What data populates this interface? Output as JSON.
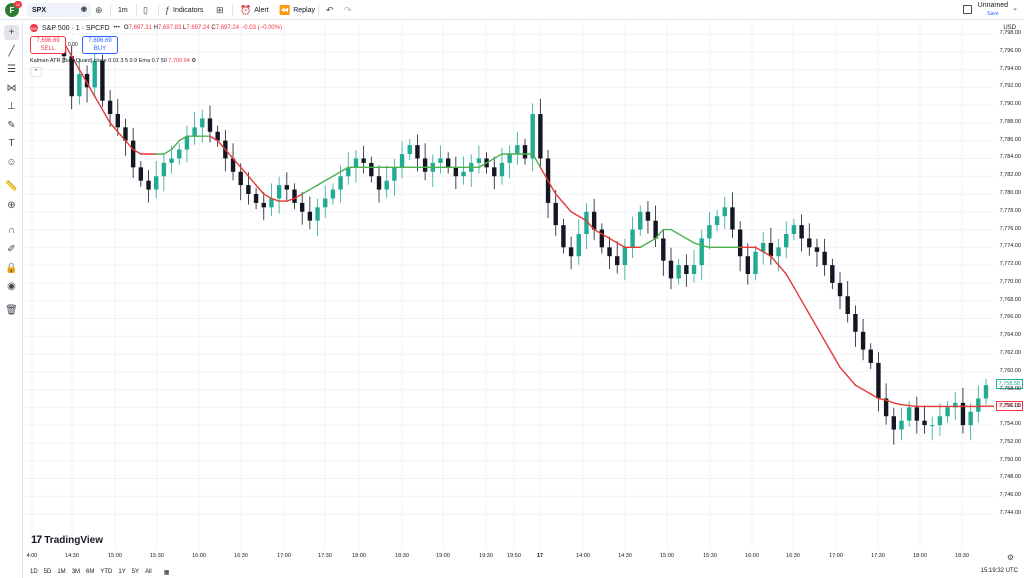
{
  "topbar": {
    "logo_letter": "F",
    "badge": "11",
    "symbol": "SPX",
    "interval": "1m",
    "indicators": "Indicators",
    "alert": "Alert",
    "replay": "Replay",
    "layout_name": "Unnamed",
    "save_label": "Save"
  },
  "legend": {
    "symbol_title": "S&P 500 · 1 · SPCFD",
    "ohlc": {
      "o": "7,697.31",
      "h": "7,697.83",
      "l": "7,697.24",
      "c": "7,697.24",
      "change": "−0.03 (−0.00%)"
    },
    "sell_price": "7,696.69",
    "sell_label": "SELL",
    "spread": "0.00",
    "buy_price": "7,696.69",
    "buy_label": "BUY",
    "indicator": "Kalman ATR [BackQuant] close 0.01 3 5 0.9 Ema 0.7 50",
    "indicator_value": "7,700.94"
  },
  "price_axis": {
    "currency": "USD",
    "labels": [
      "7,798.00",
      "7,796.00",
      "7,794.00",
      "7,792.00",
      "7,790.00",
      "7,788.00",
      "7,786.00",
      "7,784.00",
      "7,782.00",
      "7,780.00",
      "7,778.00",
      "7,776.00",
      "7,774.00",
      "7,772.00",
      "7,770.00",
      "7,768.00",
      "7,766.00",
      "7,764.00",
      "7,762.00",
      "7,760.00",
      "7,758.00",
      "7,756.00",
      "7,754.00",
      "7,752.00",
      "7,750.00",
      "7,748.00",
      "7,746.00",
      "7,744.00"
    ],
    "last_price_tag": "7,758.58",
    "indicator_tag": "7,756.13"
  },
  "time_axis": {
    "labels": [
      "4:00",
      "14:30",
      "15:00",
      "15:30",
      "16:00",
      "16:30",
      "17:00",
      "17:30",
      "18:00",
      "18:30",
      "19:00",
      "19:30",
      "19:50",
      "17",
      "14:00",
      "14:30",
      "15:00",
      "15:30",
      "16:00",
      "16:30",
      "17:00",
      "17:30",
      "18:00",
      "18:30"
    ]
  },
  "bottombar": {
    "ranges": [
      "1D",
      "5D",
      "1M",
      "3M",
      "6M",
      "YTD",
      "1Y",
      "5Y",
      "All"
    ],
    "clock": "15:19:32 UTC"
  },
  "watermark": "TradingView",
  "chart_data": {
    "type": "candlestick",
    "symbol": "S&P 500 · 1 · SPCFD",
    "ylim": [
      7743,
      7799
    ],
    "indicator_name": "Kalman ATR [BackQuant]",
    "colors": {
      "up": "#22ab94",
      "down": "#131722",
      "line_bear": "#e53935",
      "line_bull": "#4caf50"
    },
    "close_series": [
      7795.5,
      7791,
      7793.5,
      7792,
      7795,
      7790.5,
      7789,
      7787.5,
      7786,
      7783,
      7781.5,
      7780.5,
      7782,
      7783.5,
      7784,
      7785,
      7786.5,
      7787.5,
      7788.5,
      7787,
      7786,
      7784,
      7782.5,
      7781,
      7780,
      7779,
      7778.5,
      7779.5,
      7781,
      7780.5,
      7779,
      7778,
      7777,
      7778.5,
      7779.5,
      7780.5,
      7782,
      7783,
      7784,
      7783.5,
      7782,
      7780.5,
      7781.5,
      7783,
      7784.5,
      7785.5,
      7784,
      7782.5,
      7783.5,
      7784,
      7783,
      7782,
      7782.5,
      7783.5,
      7784,
      7783,
      7782,
      7783.5,
      7784.5,
      7785.5,
      7784,
      7789,
      7784,
      7779,
      7776.5,
      7774,
      7773,
      7775.5,
      7778,
      7776,
      7774,
      7773,
      7772,
      7774,
      7776,
      7778,
      7777,
      7775,
      7772.5,
      7770.5,
      7772,
      7771,
      7772,
      7775,
      7776.5,
      7777.5,
      7778.5,
      7776,
      7773,
      7771,
      7773.5,
      7774.5,
      7773,
      7774,
      7775.5,
      7776.5,
      7775,
      7774,
      7773.5,
      7772,
      7770,
      7768.5,
      7766.5,
      7764.5,
      7762.5,
      7761,
      7757,
      7755,
      7753.5,
      7754.5,
      7756,
      7754.5,
      7754,
      7754,
      7755,
      7756,
      7756.5,
      7754,
      7755.5,
      7757,
      7758.5
    ],
    "indicator_series": [
      7797,
      7795.5,
      7794,
      7792.5,
      7791,
      7789.5,
      7788,
      7787,
      7786,
      7785,
      7784.5,
      7784.5,
      7784.5,
      7784.5,
      7785,
      7786,
      7786.5,
      7786.5,
      7786.5,
      7786.5,
      7786,
      7785,
      7784,
      7783,
      7782,
      7781,
      7780,
      7779.5,
      7779.2,
      7779.2,
      7779.5,
      7780,
      7780.5,
      7781,
      7781.5,
      7782,
      7782.5,
      7783,
      7783,
      7783,
      7783,
      7783,
      7783,
      7783,
      7783,
      7783,
      7783,
      7783,
      7783,
      7783,
      7783,
      7783,
      7783,
      7783,
      7783,
      7783.5,
      7784,
      7784.5,
      7784.5,
      7784.5,
      7784.5,
      7784.5,
      7783,
      7781.5,
      7780,
      7779,
      7778,
      7777.5,
      7777,
      7776,
      7775.5,
      7775,
      7774.5,
      7774,
      7774,
      7774,
      7774.5,
      7775,
      7776,
      7776,
      7775.5,
      7775,
      7774.5,
      7774.2,
      7774,
      7774,
      7774,
      7774,
      7774,
      7774,
      7774,
      7773.5,
      7773,
      7772,
      7771,
      7769.5,
      7768,
      7766.5,
      7765,
      7763.5,
      7762,
      7760.5,
      7759.5,
      7758.5,
      7758,
      7757.5,
      7757,
      7756.8,
      7756.5,
      7756.3,
      7756.2,
      7756.1,
      7756.1,
      7756.1,
      7756.1,
      7756.1,
      7756.1,
      7756.1,
      7756.1,
      7756.1,
      7756.13
    ],
    "indicator_bull_ranges": [
      [
        12,
        18
      ],
      [
        31,
        61
      ],
      [
        75,
        87
      ]
    ]
  }
}
